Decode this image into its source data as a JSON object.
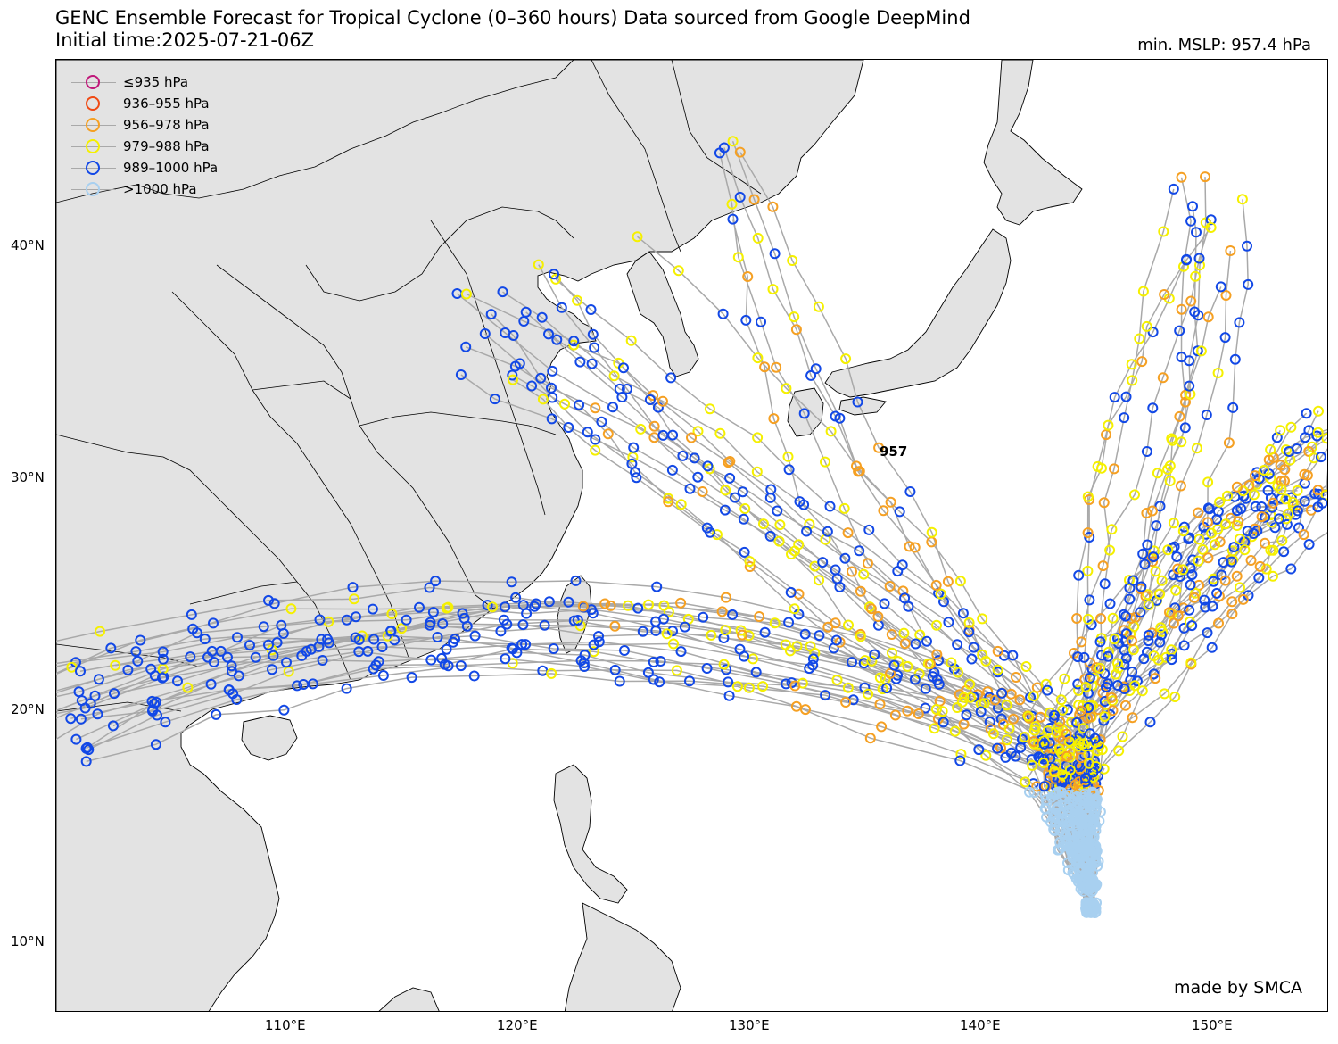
{
  "header": {
    "title_line1": "GENC Ensemble Forecast for Tropical Cyclone (0–360 hours) Data sourced from Google DeepMind",
    "title_line2": "Initial time:2025-07-21-06Z",
    "min_mslp": "min. MSLP: 957.4 hPa"
  },
  "legend": {
    "items": [
      {
        "label": "≤935 hPa",
        "color": "#c0187a"
      },
      {
        "label": "936–955 hPa",
        "color": "#f04a14"
      },
      {
        "label": "956–978 hPa",
        "color": "#f5a023"
      },
      {
        "label": "979–988 hPa",
        "color": "#f5f000"
      },
      {
        "label": "989–1000 hPa",
        "color": "#1248e6"
      },
      {
        "label": ">1000 hPa",
        "color": "#a8d0f0"
      }
    ]
  },
  "axes": {
    "lat_labels": [
      "40°N",
      "30°N",
      "20°N",
      "10°N"
    ],
    "lon_labels": [
      "110°E",
      "120°E",
      "130°E",
      "140°E",
      "150°E"
    ]
  },
  "min_marker_label": "957",
  "credit": "made by SMCA",
  "colors": {
    "land": "#e3e3e3",
    "track": "#a9a9a9",
    "border": "#000000"
  }
}
